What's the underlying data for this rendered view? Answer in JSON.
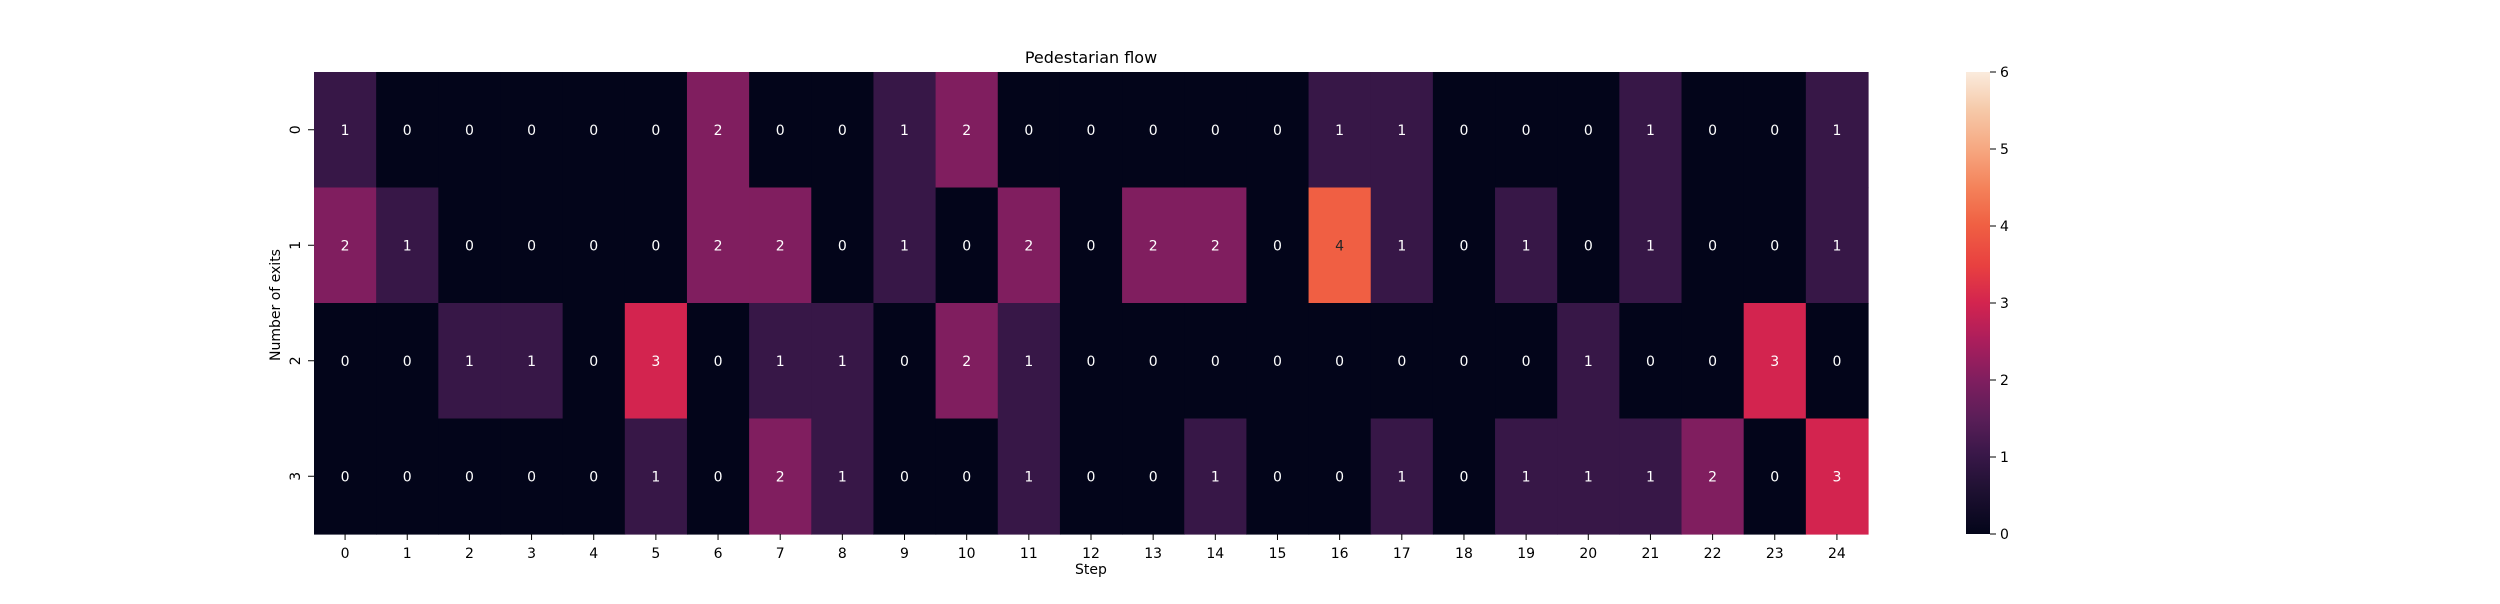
{
  "chart_data": {
    "type": "heatmap",
    "title": "Pedestarian flow",
    "xlabel": "Step",
    "ylabel": "Number of exits",
    "x_categories": [
      "0",
      "1",
      "2",
      "3",
      "4",
      "5",
      "6",
      "7",
      "8",
      "9",
      "10",
      "11",
      "12",
      "13",
      "14",
      "15",
      "16",
      "17",
      "18",
      "19",
      "20",
      "21",
      "22",
      "23",
      "24"
    ],
    "y_categories": [
      "0",
      "1",
      "2",
      "3"
    ],
    "values": [
      [
        1,
        0,
        0,
        0,
        0,
        0,
        2,
        0,
        0,
        1,
        2,
        0,
        0,
        0,
        0,
        0,
        1,
        1,
        0,
        0,
        0,
        1,
        0,
        0,
        1
      ],
      [
        2,
        1,
        0,
        0,
        0,
        0,
        2,
        2,
        0,
        1,
        0,
        2,
        0,
        2,
        2,
        0,
        4,
        1,
        0,
        1,
        0,
        1,
        0,
        0,
        1
      ],
      [
        0,
        0,
        1,
        1,
        0,
        3,
        0,
        1,
        1,
        0,
        2,
        1,
        0,
        0,
        0,
        0,
        0,
        0,
        0,
        0,
        1,
        0,
        0,
        3,
        0
      ],
      [
        0,
        0,
        0,
        0,
        0,
        1,
        0,
        2,
        1,
        0,
        0,
        1,
        0,
        0,
        1,
        0,
        0,
        1,
        0,
        1,
        1,
        1,
        2,
        0,
        3
      ]
    ],
    "colorbar": {
      "vmin": 0,
      "vmax": 6,
      "ticks": [
        "0",
        "1",
        "2",
        "3",
        "4",
        "5",
        "6"
      ],
      "colormap": "rocket"
    },
    "annotations": true,
    "grid": false
  }
}
